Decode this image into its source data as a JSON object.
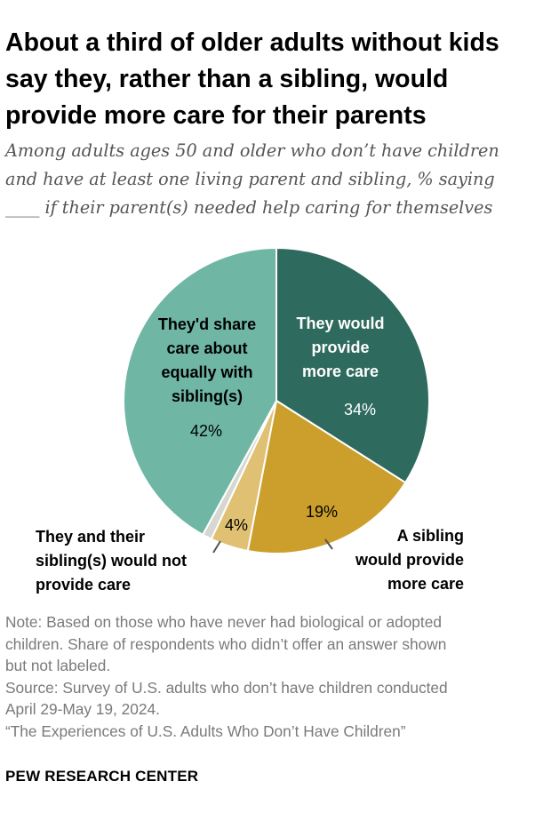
{
  "title_lines": [
    "About a third of older adults without kids",
    "say they, rather than a sibling, would",
    "provide more care for their parents"
  ],
  "subtitle_lines": [
    "Among adults ages 50 and older who don’t have children",
    "and have at least one living parent and sibling, % saying",
    "____ if their parent(s) needed help caring for themselves"
  ],
  "notes": [
    "Note: Based on those who have never had biological or adopted",
    "children. Share of respondents who didn’t offer an answer shown",
    "but not labeled.",
    "Source: Survey of U.S. adults who don’t have children conducted",
    "April 29-May 19, 2024.",
    "“The Experiences of U.S. Adults Who Don’t Have Children”"
  ],
  "brand": "PEW RESEARCH CENTER",
  "chart_data": {
    "type": "pie",
    "slices": [
      {
        "label_lines": [
          "They would",
          "provide",
          "more care"
        ],
        "value": 34,
        "value_label": "34%",
        "color": "#2e6b5e"
      },
      {
        "label_lines": [
          "A sibling",
          "would provide",
          "more care"
        ],
        "value": 19,
        "value_label": "19%",
        "color": "#cc9f2c"
      },
      {
        "label_lines": [
          "They and their",
          "sibling(s) would not",
          "provide care"
        ],
        "value": 4,
        "value_label": "4%",
        "color": "#e0c073"
      },
      {
        "label_lines": [],
        "value": 1,
        "value_label": "",
        "color": "#d7d7d2"
      },
      {
        "label_lines": [
          "They'd share",
          "care about",
          "equally with",
          "sibling(s)"
        ],
        "value": 42,
        "value_label": "42%",
        "color": "#6fb6a5"
      }
    ]
  }
}
